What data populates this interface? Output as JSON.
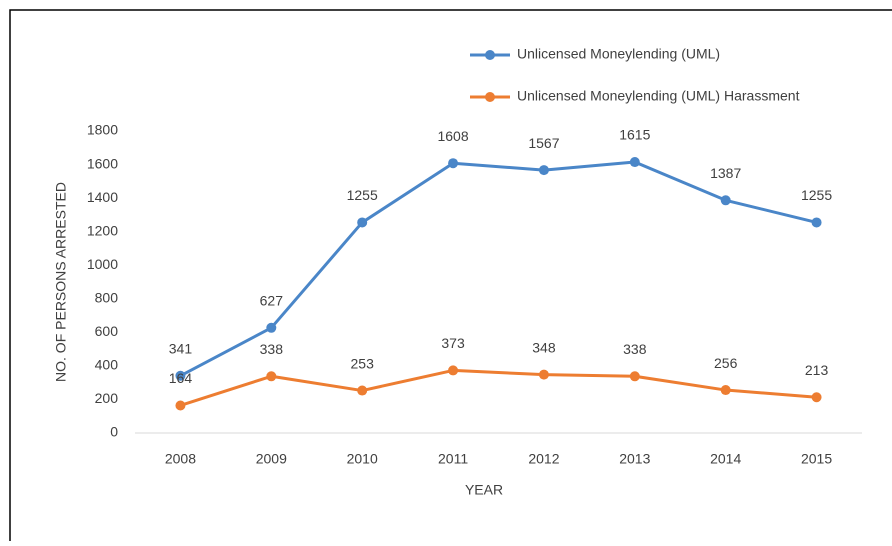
{
  "chart_data": {
    "type": "line",
    "x_label": "YEAR",
    "y_label": "NO. OF PERSONS ARRESTED",
    "categories": [
      "2008",
      "2009",
      "2010",
      "2011",
      "2012",
      "2013",
      "2014",
      "2015"
    ],
    "series": [
      {
        "name": "Unlicensed Moneylending (UML)",
        "color": "#4a86c8",
        "values": [
          341,
          627,
          1255,
          1608,
          1567,
          1615,
          1387,
          1255
        ]
      },
      {
        "name": "Unlicensed Moneylending (UML) Harassment",
        "color": "#ed7d31",
        "values": [
          164,
          338,
          253,
          373,
          348,
          338,
          256,
          213
        ]
      }
    ],
    "ylim": [
      0,
      1800
    ],
    "yticks": [
      0,
      200,
      400,
      600,
      800,
      1000,
      1200,
      1400,
      1600,
      1800
    ],
    "grid": false,
    "legend": "top",
    "data_labels": true
  }
}
